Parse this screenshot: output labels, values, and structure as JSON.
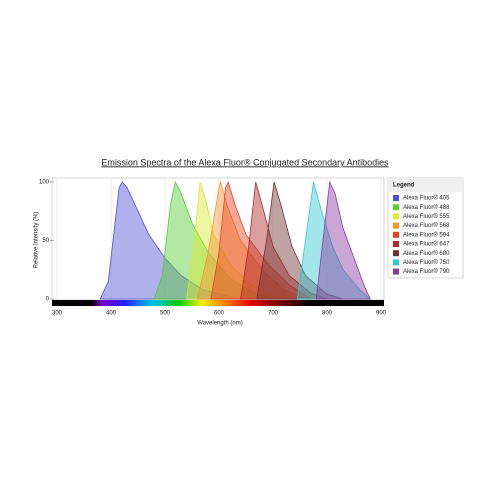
{
  "chart_data": {
    "type": "area",
    "title": "Emission Spectra of the Alexa Fluor® Conjugated Secondary Antibodies",
    "xlabel": "Wavelength (nm)",
    "ylabel": "Relative Intensity (%)",
    "legend_title": "Legend",
    "legend": "right",
    "grid": true,
    "xlim": [
      300,
      900
    ],
    "xticks": [
      300,
      400,
      500,
      600,
      700,
      800,
      900
    ],
    "ylim": [
      0,
      100
    ],
    "yticks": [
      0,
      50,
      100
    ],
    "series": [
      {
        "name": "Alexa Fluor® 405",
        "color": "#5050d8",
        "x": [
          380,
          395,
          405,
          415,
          421,
          430,
          450,
          470,
          500,
          530,
          570,
          620,
          650
        ],
        "values": [
          0,
          15,
          55,
          95,
          100,
          95,
          75,
          55,
          35,
          20,
          8,
          2,
          0
        ]
      },
      {
        "name": "Alexa Fluor® 488",
        "color": "#55cc33",
        "x": [
          480,
          495,
          510,
          519,
          530,
          550,
          580,
          620,
          660,
          700
        ],
        "values": [
          0,
          20,
          80,
          100,
          90,
          65,
          40,
          18,
          6,
          0
        ]
      },
      {
        "name": "Alexa Fluor® 555",
        "color": "#d8e830",
        "x": [
          540,
          552,
          565,
          575,
          590,
          620,
          660,
          700,
          730
        ],
        "values": [
          0,
          40,
          100,
          85,
          55,
          30,
          12,
          3,
          0
        ]
      },
      {
        "name": "Alexa Fluor® 568",
        "color": "#f59530",
        "x": [
          560,
          580,
          600,
          603,
          615,
          640,
          680,
          720,
          760
        ],
        "values": [
          0,
          40,
          95,
          100,
          80,
          50,
          25,
          8,
          0
        ]
      },
      {
        "name": "Alexa Fluor® 594",
        "color": "#e84020",
        "x": [
          585,
          600,
          612,
          617,
          630,
          650,
          690,
          730,
          770
        ],
        "values": [
          0,
          40,
          95,
          100,
          80,
          55,
          30,
          12,
          0
        ]
      },
      {
        "name": "Alexa Fluor® 647",
        "color": "#b02828",
        "x": [
          640,
          655,
          668,
          680,
          700,
          730,
          770,
          800
        ],
        "values": [
          0,
          45,
          100,
          80,
          45,
          20,
          5,
          0
        ]
      },
      {
        "name": "Alexa Fluor® 680",
        "color": "#703030",
        "x": [
          670,
          688,
          702,
          715,
          735,
          760,
          800,
          830
        ],
        "values": [
          0,
          50,
          100,
          80,
          45,
          20,
          4,
          0
        ]
      },
      {
        "name": "Alexa Fluor® 750",
        "color": "#30c8d0",
        "x": [
          745,
          760,
          775,
          790,
          810,
          830,
          860,
          880
        ],
        "values": [
          0,
          50,
          100,
          75,
          45,
          25,
          8,
          0
        ]
      },
      {
        "name": "Alexa Fluor® 790",
        "color": "#8a3aa0",
        "x": [
          780,
          795,
          805,
          815,
          830,
          850,
          870,
          880
        ],
        "values": [
          0,
          60,
          100,
          90,
          60,
          35,
          10,
          0
        ]
      }
    ]
  }
}
